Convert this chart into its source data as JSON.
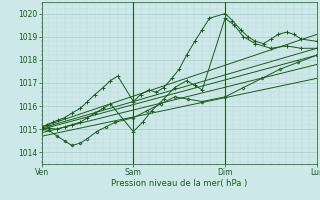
{
  "bg_color": "#cce8e8",
  "grid_major_color": "#aacccc",
  "grid_minor_color": "#bcd8d8",
  "line_color": "#1a5c1a",
  "xlabel": "Pression niveau de la mer( hPa )",
  "xtick_labels": [
    "Ven",
    "Sam",
    "Dim",
    "Lun"
  ],
  "ylim": [
    1013.5,
    1020.5
  ],
  "yticks": [
    1014,
    1015,
    1016,
    1017,
    1018,
    1019,
    1020
  ],
  "figsize": [
    3.2,
    2.0
  ],
  "dpi": 100,
  "trend_lines": [
    {
      "x": [
        0,
        3.0
      ],
      "y": [
        1015.1,
        1019.1
      ]
    },
    {
      "x": [
        0,
        3.0
      ],
      "y": [
        1015.05,
        1018.5
      ]
    },
    {
      "x": [
        0,
        3.0
      ],
      "y": [
        1015.0,
        1018.2
      ]
    },
    {
      "x": [
        0,
        3.0
      ],
      "y": [
        1014.85,
        1017.8
      ]
    },
    {
      "x": [
        0,
        3.0
      ],
      "y": [
        1014.7,
        1017.2
      ]
    }
  ],
  "line1_x": [
    0,
    0.06,
    0.12,
    0.18,
    0.25,
    0.33,
    0.42,
    0.5,
    0.58,
    0.67,
    0.75,
    0.83,
    1.0,
    1.08,
    1.17,
    1.25,
    1.33,
    1.42,
    1.5,
    1.58,
    1.67,
    1.75,
    1.83,
    2.0,
    2.08,
    2.17,
    2.25,
    2.33,
    2.42,
    2.5,
    2.58,
    2.67,
    2.75,
    2.83,
    3.0
  ],
  "line1_y": [
    1015.1,
    1015.2,
    1015.3,
    1015.4,
    1015.5,
    1015.7,
    1015.9,
    1016.2,
    1016.5,
    1016.8,
    1017.1,
    1017.3,
    1016.2,
    1016.5,
    1016.7,
    1016.6,
    1016.8,
    1017.2,
    1017.6,
    1018.2,
    1018.8,
    1019.3,
    1019.8,
    1020.0,
    1019.7,
    1019.3,
    1019.0,
    1018.8,
    1018.7,
    1018.9,
    1019.1,
    1019.2,
    1019.1,
    1018.9,
    1018.8
  ],
  "line2_x": [
    0,
    0.08,
    0.17,
    0.25,
    0.33,
    0.42,
    0.5,
    0.58,
    0.67,
    0.75,
    1.0,
    1.1,
    1.2,
    1.33,
    1.45,
    1.58,
    1.67,
    1.75,
    2.0,
    2.1,
    2.2,
    2.33,
    2.5,
    2.67,
    2.83,
    3.0
  ],
  "line2_y": [
    1015.0,
    1015.05,
    1015.0,
    1015.1,
    1015.2,
    1015.3,
    1015.5,
    1015.7,
    1015.9,
    1016.1,
    1014.9,
    1015.3,
    1015.8,
    1016.3,
    1016.8,
    1017.1,
    1016.9,
    1016.7,
    1019.8,
    1019.5,
    1019.0,
    1018.7,
    1018.5,
    1018.6,
    1018.5,
    1018.5
  ],
  "line3_x": [
    0,
    0.08,
    0.17,
    0.25,
    0.33,
    0.42,
    0.5,
    0.6,
    0.7,
    0.8,
    1.0,
    1.15,
    1.3,
    1.45,
    1.6,
    1.75,
    2.0,
    2.2,
    2.4,
    2.6,
    2.8,
    3.0
  ],
  "line3_y": [
    1015.0,
    1014.95,
    1014.7,
    1014.5,
    1014.3,
    1014.4,
    1014.6,
    1014.9,
    1015.1,
    1015.3,
    1015.5,
    1015.8,
    1016.1,
    1016.4,
    1016.3,
    1016.2,
    1016.4,
    1016.8,
    1017.2,
    1017.6,
    1017.9,
    1018.2
  ]
}
